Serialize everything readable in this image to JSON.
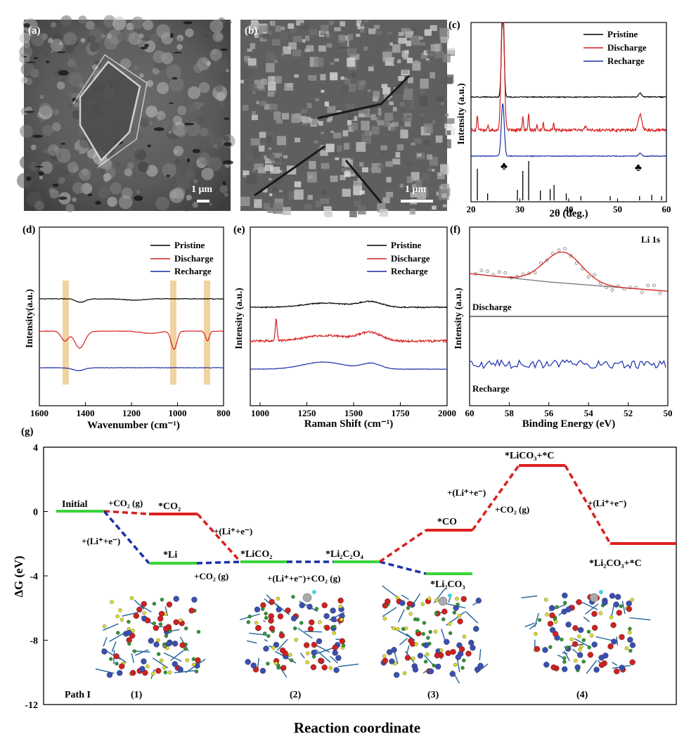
{
  "panels": {
    "a": {
      "label": "(a)",
      "scale": "1 μm"
    },
    "b": {
      "label": "(b)",
      "scale": "1 μm"
    },
    "c": {
      "label": "(c)",
      "xlabel": "2θ (deg.)",
      "ylabel": "Intensity (a.u.)",
      "xticks": [
        "20",
        "30",
        "40",
        "50",
        "60"
      ],
      "legend": [
        "Pristine",
        "Discharge",
        "Recharge"
      ],
      "marker": "♣"
    },
    "d": {
      "label": "(d)",
      "xlabel": "Wavenumber (cm⁻¹)",
      "ylabel": "Intensity(a.u.)",
      "xticks": [
        "1600",
        "1400",
        "1200",
        "1000",
        "800"
      ],
      "legend": [
        "Pristine",
        "Discharge",
        "Recharge"
      ]
    },
    "e": {
      "label": "(e)",
      "xlabel": "Raman Shift (cm⁻¹)",
      "ylabel": "Intensity (a.u.)",
      "xticks": [
        "1000",
        "1250",
        "1500",
        "1750",
        "2000"
      ],
      "legend": [
        "Pristine",
        "Discharge",
        "Recharge"
      ]
    },
    "f": {
      "label": "(f)",
      "xlabel": "Binding Energy (eV)",
      "ylabel": "Intensity (a.u.)",
      "xticks": [
        "60",
        "58",
        "56",
        "54",
        "52",
        "50"
      ],
      "title": "Li 1s",
      "sub1": "Discharge",
      "sub2": "Recharge"
    },
    "g": {
      "label": "(g)",
      "ylabel": "ΔG (eV)",
      "xlabel": "Reaction coordinate",
      "yticks": [
        "4",
        "0",
        "-4",
        "-8",
        "-12"
      ],
      "path_label": "Path I",
      "structures": [
        "(1)",
        "(2)",
        "(3)",
        "(4)"
      ],
      "states": {
        "initial": "Initial",
        "co2": "*CO₂",
        "li": "*Li",
        "lico2": "*LiCO₂",
        "li2c2o4": "*Li₂C₂O₄",
        "co": "*CO",
        "lico3c": "*LiCO₃+*C",
        "li2co3": "*Li₂CO₃",
        "li2co3c": "*Li₂CO₃+*C"
      },
      "steps": {
        "s1": "+CO₂ (g)",
        "s2": "+(Li⁺+e⁻)",
        "s3": "+(Li⁺+e⁻)",
        "s4": "+CO₂ (g)",
        "s5": "+(Li⁺+e⁻)+CO₂ (g)",
        "s6": "+(Li⁺+e⁻)",
        "s7": "+CO₂ (g)",
        "s8": "+(Li⁺+e⁻)"
      }
    }
  },
  "chart_data": [
    {
      "type": "line",
      "title": "",
      "xlabel": "2θ (deg.)",
      "ylabel": "Intensity (a.u.)",
      "xlim": [
        20,
        60
      ],
      "series": [
        {
          "name": "Pristine",
          "peaks": [
            26.5,
            54.6
          ]
        },
        {
          "name": "Discharge",
          "peaks": [
            21.3,
            26.5,
            30.6,
            31.8,
            36.9,
            54.6
          ]
        },
        {
          "name": "Recharge",
          "peaks": [
            26.5,
            54.6
          ]
        }
      ]
    },
    {
      "type": "line",
      "title": "",
      "xlabel": "Wavenumber (cm⁻¹)",
      "ylabel": "Intensity(a.u.)",
      "xlim": [
        1600,
        800
      ],
      "series": [
        {
          "name": "Pristine"
        },
        {
          "name": "Discharge",
          "dips": [
            1430,
            1490,
            1015,
            870
          ]
        },
        {
          "name": "Recharge"
        }
      ]
    },
    {
      "type": "line",
      "title": "",
      "xlabel": "Raman Shift (cm⁻¹)",
      "ylabel": "Intensity (a.u.)",
      "xlim": [
        950,
        2000
      ],
      "series": [
        {
          "name": "Pristine"
        },
        {
          "name": "Discharge",
          "peaks": [
            1090
          ]
        },
        {
          "name": "Recharge"
        }
      ]
    },
    {
      "type": "line",
      "title": "Li 1s",
      "xlabel": "Binding Energy (eV)",
      "ylabel": "Intensity (a.u.)",
      "xlim": [
        60,
        50
      ],
      "series": [
        {
          "name": "Discharge",
          "peaks": [
            55.3
          ]
        },
        {
          "name": "Recharge"
        }
      ]
    },
    {
      "type": "line",
      "title": "",
      "xlabel": "Reaction coordinate",
      "ylabel": "ΔG (eV)",
      "ylim": [
        -12,
        4
      ],
      "levels": [
        {
          "state": "Initial",
          "dG": 0.0
        },
        {
          "state": "*CO₂",
          "dG": -0.2
        },
        {
          "state": "*Li",
          "dG": -3.2
        },
        {
          "state": "*LiCO₂",
          "dG": -3.1
        },
        {
          "state": "*Li₂C₂O₄",
          "dG": -3.1
        },
        {
          "state": "*Li₂CO₃",
          "dG": -3.9
        },
        {
          "state": "*CO",
          "dG": -1.2
        },
        {
          "state": "*LiCO₃+*C",
          "dG": 2.8
        },
        {
          "state": "*Li₂CO₃+*C",
          "dG": -2.0
        }
      ]
    }
  ]
}
